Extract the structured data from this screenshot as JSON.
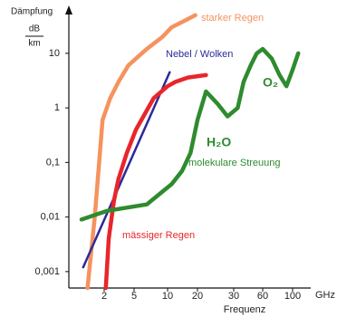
{
  "chart_data": {
    "type": "line",
    "y_label": "Dämpfung",
    "y_unit_top": "dB",
    "y_unit_bottom": "km",
    "x_label": "Frequenz",
    "x_unit": "GHz",
    "xlog": true,
    "ylog": true,
    "xlim": [
      1,
      150
    ],
    "ylim": [
      0.0005,
      60
    ],
    "xticks": [
      2,
      5,
      10,
      20,
      30,
      60,
      100
    ],
    "yticks": [
      {
        "value": 0.001,
        "label": "0,001"
      },
      {
        "value": 0.01,
        "label": "0,01"
      },
      {
        "value": 0.1,
        "label": "0,1"
      },
      1,
      10
    ],
    "series": [
      {
        "name": "starker Regen",
        "color": "#f5935f",
        "x": [
          1.2,
          1.5,
          1.9,
          2.4,
          3.1,
          4.2,
          6.5,
          9,
          11,
          15,
          19
        ],
        "values": [
          0.0005,
          0.01,
          0.6,
          1.5,
          3,
          6,
          12,
          20,
          30,
          40,
          50
        ]
      },
      {
        "name": "Nebel / Wolken",
        "color": "#2a2a9a",
        "x": [
          1.05,
          10.5
        ],
        "values": [
          0.0012,
          4.5
        ]
      },
      {
        "name": "mässiger Regen",
        "color": "#e8262a",
        "x": [
          2.1,
          2.3,
          2.7,
          3.1,
          4,
          5.2,
          7.5,
          10,
          12,
          16,
          22
        ],
        "values": [
          0.0005,
          0.004,
          0.02,
          0.05,
          0.15,
          0.4,
          1.5,
          2.5,
          3,
          3.6,
          4
        ]
      },
      {
        "name": "molekulare Streuung",
        "color": "#2e8b2e",
        "x": [
          1,
          2.2,
          6.5,
          11,
          14,
          17,
          20,
          22,
          25,
          28,
          33,
          38,
          45,
          52,
          60,
          70,
          80,
          90,
          100,
          110
        ],
        "values": [
          0.009,
          0.013,
          0.017,
          0.04,
          0.07,
          0.15,
          0.6,
          2,
          1.2,
          0.7,
          1,
          3,
          6,
          10,
          12,
          8,
          4,
          2.5,
          5,
          10
        ]
      }
    ],
    "annotations": [
      {
        "text": "starker Regen",
        "color": "#f5935f"
      },
      {
        "text": "Nebel / Wolken",
        "color": "#2a2a9a"
      },
      {
        "text": "O₂",
        "color": "#2e8b2e"
      },
      {
        "text": "H₂O",
        "color": "#2e8b2e"
      },
      {
        "text": "molekulare Streuung",
        "color": "#2e8b2e"
      },
      {
        "text": "mässiger Regen",
        "color": "#e8262a"
      }
    ]
  }
}
